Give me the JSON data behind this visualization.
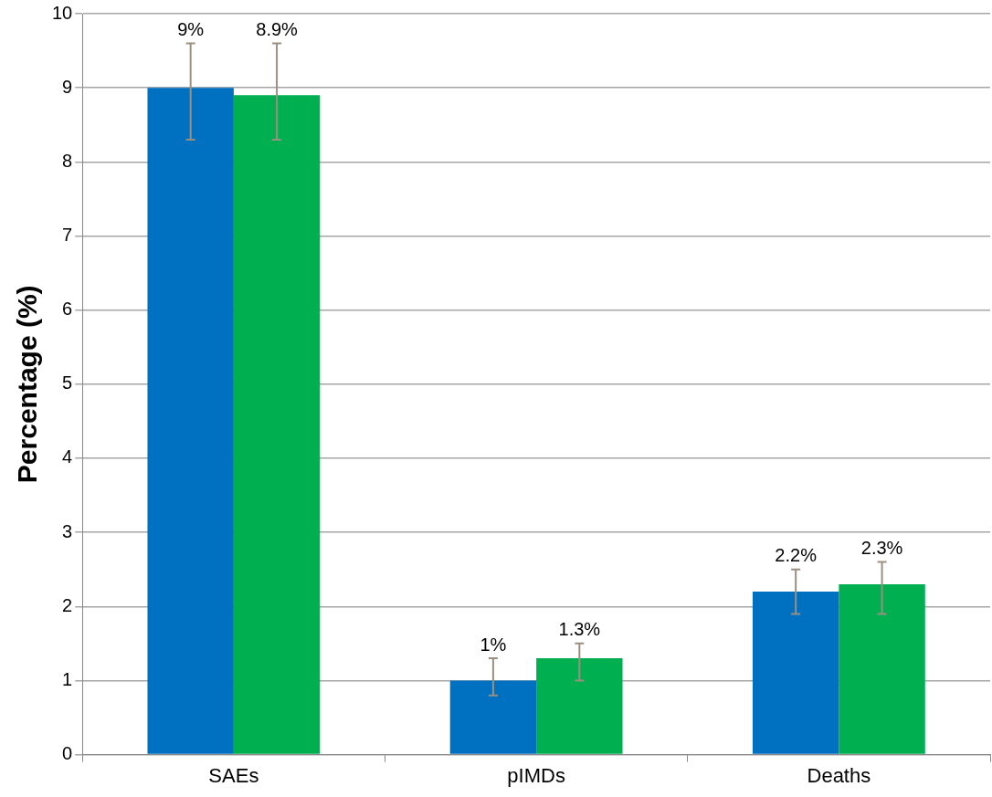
{
  "chart_data": {
    "type": "bar",
    "ylabel": "Percentage (%)",
    "categories": [
      "SAEs",
      "pIMDs",
      "Deaths"
    ],
    "series": [
      {
        "color": "#0070c0",
        "values": [
          9,
          1,
          2.2
        ],
        "errors": [
          [
            8.3,
            9.6
          ],
          [
            0.8,
            1.3
          ],
          [
            1.9,
            2.5
          ]
        ],
        "value_labels": [
          "9%",
          "1%",
          "2.2%"
        ]
      },
      {
        "color": "#00b050",
        "values": [
          8.9,
          1.3,
          2.3
        ],
        "errors": [
          [
            8.3,
            9.6
          ],
          [
            1.0,
            1.5
          ],
          [
            1.9,
            2.6
          ]
        ],
        "value_labels": [
          "8.9%",
          "1.3%",
          "2.3%"
        ]
      }
    ],
    "ylim": [
      0,
      10
    ],
    "yticks": [
      0,
      1,
      2,
      3,
      4,
      5,
      6,
      7,
      8,
      9,
      10
    ],
    "grid": "y",
    "legend": false
  }
}
